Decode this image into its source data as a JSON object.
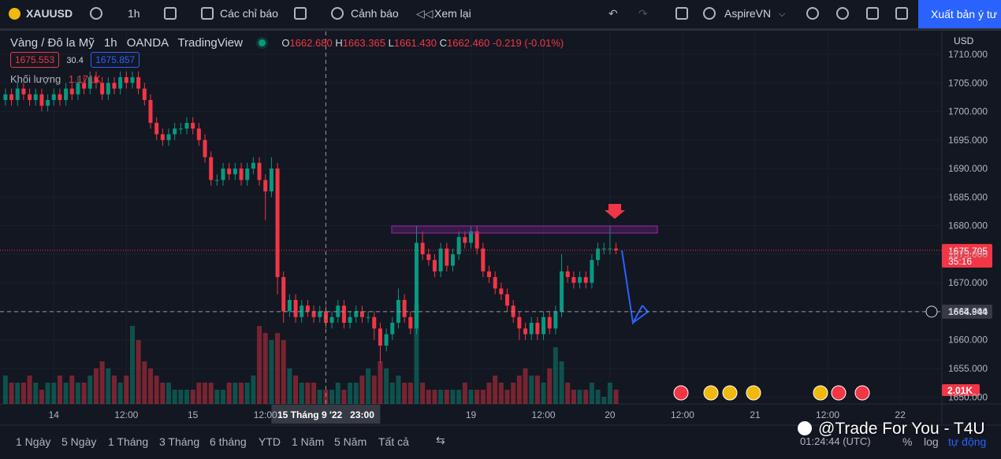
{
  "toolbar": {
    "symbol": "XAUUSD",
    "interval": "1h",
    "indicators": "Các chỉ báo",
    "alerts": "Cảnh báo",
    "replay": "Xem lại",
    "layout": "AspireVN",
    "publish": "Xuất bản ý tư"
  },
  "legend": {
    "name": "Vàng / Đô la Mỹ",
    "interval": "1h",
    "exchange": "OANDA",
    "source": "TradingView",
    "o_key": "O",
    "o": "1662.680",
    "h_key": "H",
    "h": "1663.365",
    "l_key": "L",
    "l": "1661.430",
    "c_key": "C",
    "c": "1662.460",
    "change": "-0.219 (-0.01%)",
    "bid": "1675.553",
    "spread": "30.4",
    "ask": "1675.857",
    "volume_name": "Khối lượng",
    "volume_value": "1.171K"
  },
  "chart_data": {
    "type": "candlestick",
    "open": [
      1702,
      1703,
      1702,
      1704,
      1703,
      1702,
      1703,
      1701,
      1702,
      1703,
      1702,
      1704,
      1703,
      1705,
      1704,
      1706,
      1705,
      1703,
      1705,
      1704,
      1706,
      1705,
      1706,
      1704,
      1702,
      1698,
      1696,
      1695,
      1696,
      1697,
      1697,
      1698,
      1697,
      1695,
      1692,
      1688,
      1688,
      1690,
      1689,
      1690,
      1688,
      1690,
      1691,
      1688,
      1686,
      1690,
      1671,
      1665,
      1667,
      1664,
      1666,
      1665,
      1664,
      1665,
      1663,
      1664,
      1666,
      1663,
      1664,
      1665,
      1664,
      1664,
      1662,
      1659,
      1661,
      1663,
      1667,
      1664,
      1662,
      1677,
      1675,
      1674,
      1672,
      1676,
      1673,
      1675,
      1678,
      1677,
      1679,
      1676,
      1672,
      1671,
      1669,
      1668,
      1666,
      1664,
      1662,
      1661,
      1663,
      1661,
      1664,
      1662,
      1665,
      1672,
      1671,
      1670,
      1671,
      1670,
      1674,
      1676,
      1676,
      1676
    ],
    "high": [
      1704,
      1704,
      1705,
      1705,
      1704,
      1704,
      1704,
      1703,
      1704,
      1704,
      1705,
      1705,
      1706,
      1706,
      1707,
      1707,
      1706,
      1706,
      1706,
      1707,
      1707,
      1707,
      1707,
      1705,
      1703,
      1699,
      1697,
      1697,
      1698,
      1698,
      1699,
      1699,
      1698,
      1696,
      1693,
      1689,
      1691,
      1691,
      1691,
      1691,
      1691,
      1692,
      1692,
      1689,
      1692,
      1691,
      1672,
      1668,
      1668,
      1667,
      1667,
      1666,
      1666,
      1666,
      1665,
      1667,
      1667,
      1665,
      1666,
      1666,
      1665,
      1665,
      1663,
      1662,
      1664,
      1669,
      1668,
      1665,
      1680,
      1679,
      1676,
      1675,
      1677,
      1677,
      1676,
      1679,
      1679,
      1680,
      1680,
      1677,
      1673,
      1672,
      1670,
      1669,
      1667,
      1665,
      1663,
      1664,
      1664,
      1665,
      1665,
      1666,
      1675,
      1673,
      1672,
      1672,
      1672,
      1675,
      1677,
      1677,
      1680,
      1677
    ],
    "low": [
      1701,
      1701,
      1701,
      1702,
      1701,
      1701,
      1700,
      1700,
      1701,
      1701,
      1701,
      1702,
      1702,
      1703,
      1703,
      1704,
      1702,
      1702,
      1703,
      1703,
      1704,
      1704,
      1703,
      1701,
      1697,
      1695,
      1694,
      1694,
      1695,
      1696,
      1696,
      1696,
      1694,
      1691,
      1687,
      1687,
      1687,
      1688,
      1688,
      1687,
      1687,
      1689,
      1687,
      1681,
      1685,
      1668,
      1663,
      1664,
      1663,
      1663,
      1664,
      1663,
      1663,
      1662,
      1662,
      1663,
      1662,
      1662,
      1663,
      1663,
      1663,
      1660,
      1656,
      1658,
      1660,
      1662,
      1663,
      1661,
      1661,
      1674,
      1673,
      1671,
      1671,
      1672,
      1672,
      1674,
      1676,
      1676,
      1675,
      1671,
      1670,
      1668,
      1667,
      1665,
      1663,
      1660,
      1660,
      1660,
      1660,
      1660,
      1661,
      1661,
      1664,
      1670,
      1669,
      1669,
      1669,
      1669,
      1673,
      1675,
      1675,
      1675
    ],
    "close": [
      1703,
      1702,
      1704,
      1703,
      1702,
      1703,
      1701,
      1702,
      1703,
      1702,
      1704,
      1703,
      1705,
      1704,
      1706,
      1705,
      1703,
      1705,
      1704,
      1706,
      1705,
      1706,
      1704,
      1702,
      1698,
      1696,
      1695,
      1696,
      1697,
      1697,
      1698,
      1697,
      1695,
      1692,
      1688,
      1688,
      1690,
      1689,
      1690,
      1688,
      1690,
      1691,
      1688,
      1686,
      1690,
      1671,
      1665,
      1667,
      1664,
      1666,
      1665,
      1664,
      1665,
      1663,
      1664,
      1666,
      1663,
      1664,
      1665,
      1664,
      1664,
      1662,
      1659,
      1661,
      1663,
      1667,
      1664,
      1662,
      1677,
      1675,
      1674,
      1672,
      1676,
      1673,
      1675,
      1678,
      1677,
      1679,
      1676,
      1672,
      1671,
      1669,
      1668,
      1666,
      1664,
      1662,
      1661,
      1663,
      1661,
      1664,
      1662,
      1665,
      1672,
      1671,
      1670,
      1671,
      1670,
      1674,
      1676,
      1676,
      1676,
      1675.7
    ],
    "volume": [
      4,
      3,
      3,
      3,
      4,
      3,
      2,
      3,
      3,
      4,
      3,
      4,
      3,
      3,
      4,
      5,
      6,
      5,
      4,
      3,
      4,
      11,
      9,
      6,
      5,
      4,
      3,
      3,
      2,
      2,
      2,
      2,
      3,
      3,
      3,
      2,
      2,
      3,
      3,
      3,
      3,
      4,
      11,
      10,
      9,
      10,
      9,
      5,
      4,
      3,
      3,
      3,
      2,
      2,
      2,
      3,
      2,
      3,
      3,
      4,
      5,
      4,
      6,
      5,
      3,
      4,
      3,
      3,
      14,
      3,
      2,
      2,
      2,
      2,
      2,
      2,
      3,
      2,
      2,
      2,
      3,
      4,
      3,
      2,
      3,
      4,
      5,
      4,
      4,
      3,
      5,
      8,
      6,
      3,
      2,
      2,
      2,
      3,
      2,
      1,
      3,
      2.01
    ],
    "volume_last_label": "2.01K",
    "up_color": "#089981",
    "down_color": "#f23645",
    "xlim": [
      -0.9,
      154.9
    ],
    "xticks": [
      {
        "value": 8,
        "label": "14"
      },
      {
        "value": 20,
        "label": "12:00"
      },
      {
        "value": 31,
        "label": "15"
      },
      {
        "value": 43,
        "label": "12:00"
      },
      {
        "value": 77,
        "label": "19"
      },
      {
        "value": 89,
        "label": "12:00"
      },
      {
        "value": 100,
        "label": "20"
      },
      {
        "value": 112,
        "label": "12:00"
      },
      {
        "value": 124,
        "label": "21"
      },
      {
        "value": 136,
        "label": "12:00"
      },
      {
        "value": 148,
        "label": "22"
      }
    ],
    "ylim": [
      1648.8,
      1714
    ],
    "yticks": [
      {
        "value": 1650,
        "label": "1650.000"
      },
      {
        "value": 1655,
        "label": "1655.000"
      },
      {
        "value": 1660,
        "label": "1660.000"
      },
      {
        "value": 1665,
        "label": "1665.000"
      },
      {
        "value": 1670,
        "label": "1670.000"
      },
      {
        "value": 1675,
        "label": "1675.000"
      },
      {
        "value": 1680,
        "label": "1680.000"
      },
      {
        "value": 1685,
        "label": "1685.000"
      },
      {
        "value": 1690,
        "label": "1690.000"
      },
      {
        "value": 1695,
        "label": "1695.000"
      },
      {
        "value": 1700,
        "label": "1700.000"
      },
      {
        "value": 1705,
        "label": "1705.000"
      },
      {
        "value": 1710,
        "label": "1710.000"
      }
    ],
    "currency": "USD",
    "last_price": 1675.705,
    "countdown": "35:16",
    "crosshair": {
      "x": 53,
      "price": 1664.944,
      "time_label": "15 Tháng 9 '22   23:00"
    }
  },
  "footer": {
    "ranges": [
      "1 Ngày",
      "5 Ngày",
      "1 Tháng",
      "3 Tháng",
      "6 tháng",
      "YTD",
      "1 Năm",
      "5 Năm",
      "Tất cả"
    ],
    "clock": "01:24:44 (UTC)",
    "percent": "%",
    "log": "log",
    "auto": "tự động"
  },
  "watermark": "@Trade For You - T4U"
}
